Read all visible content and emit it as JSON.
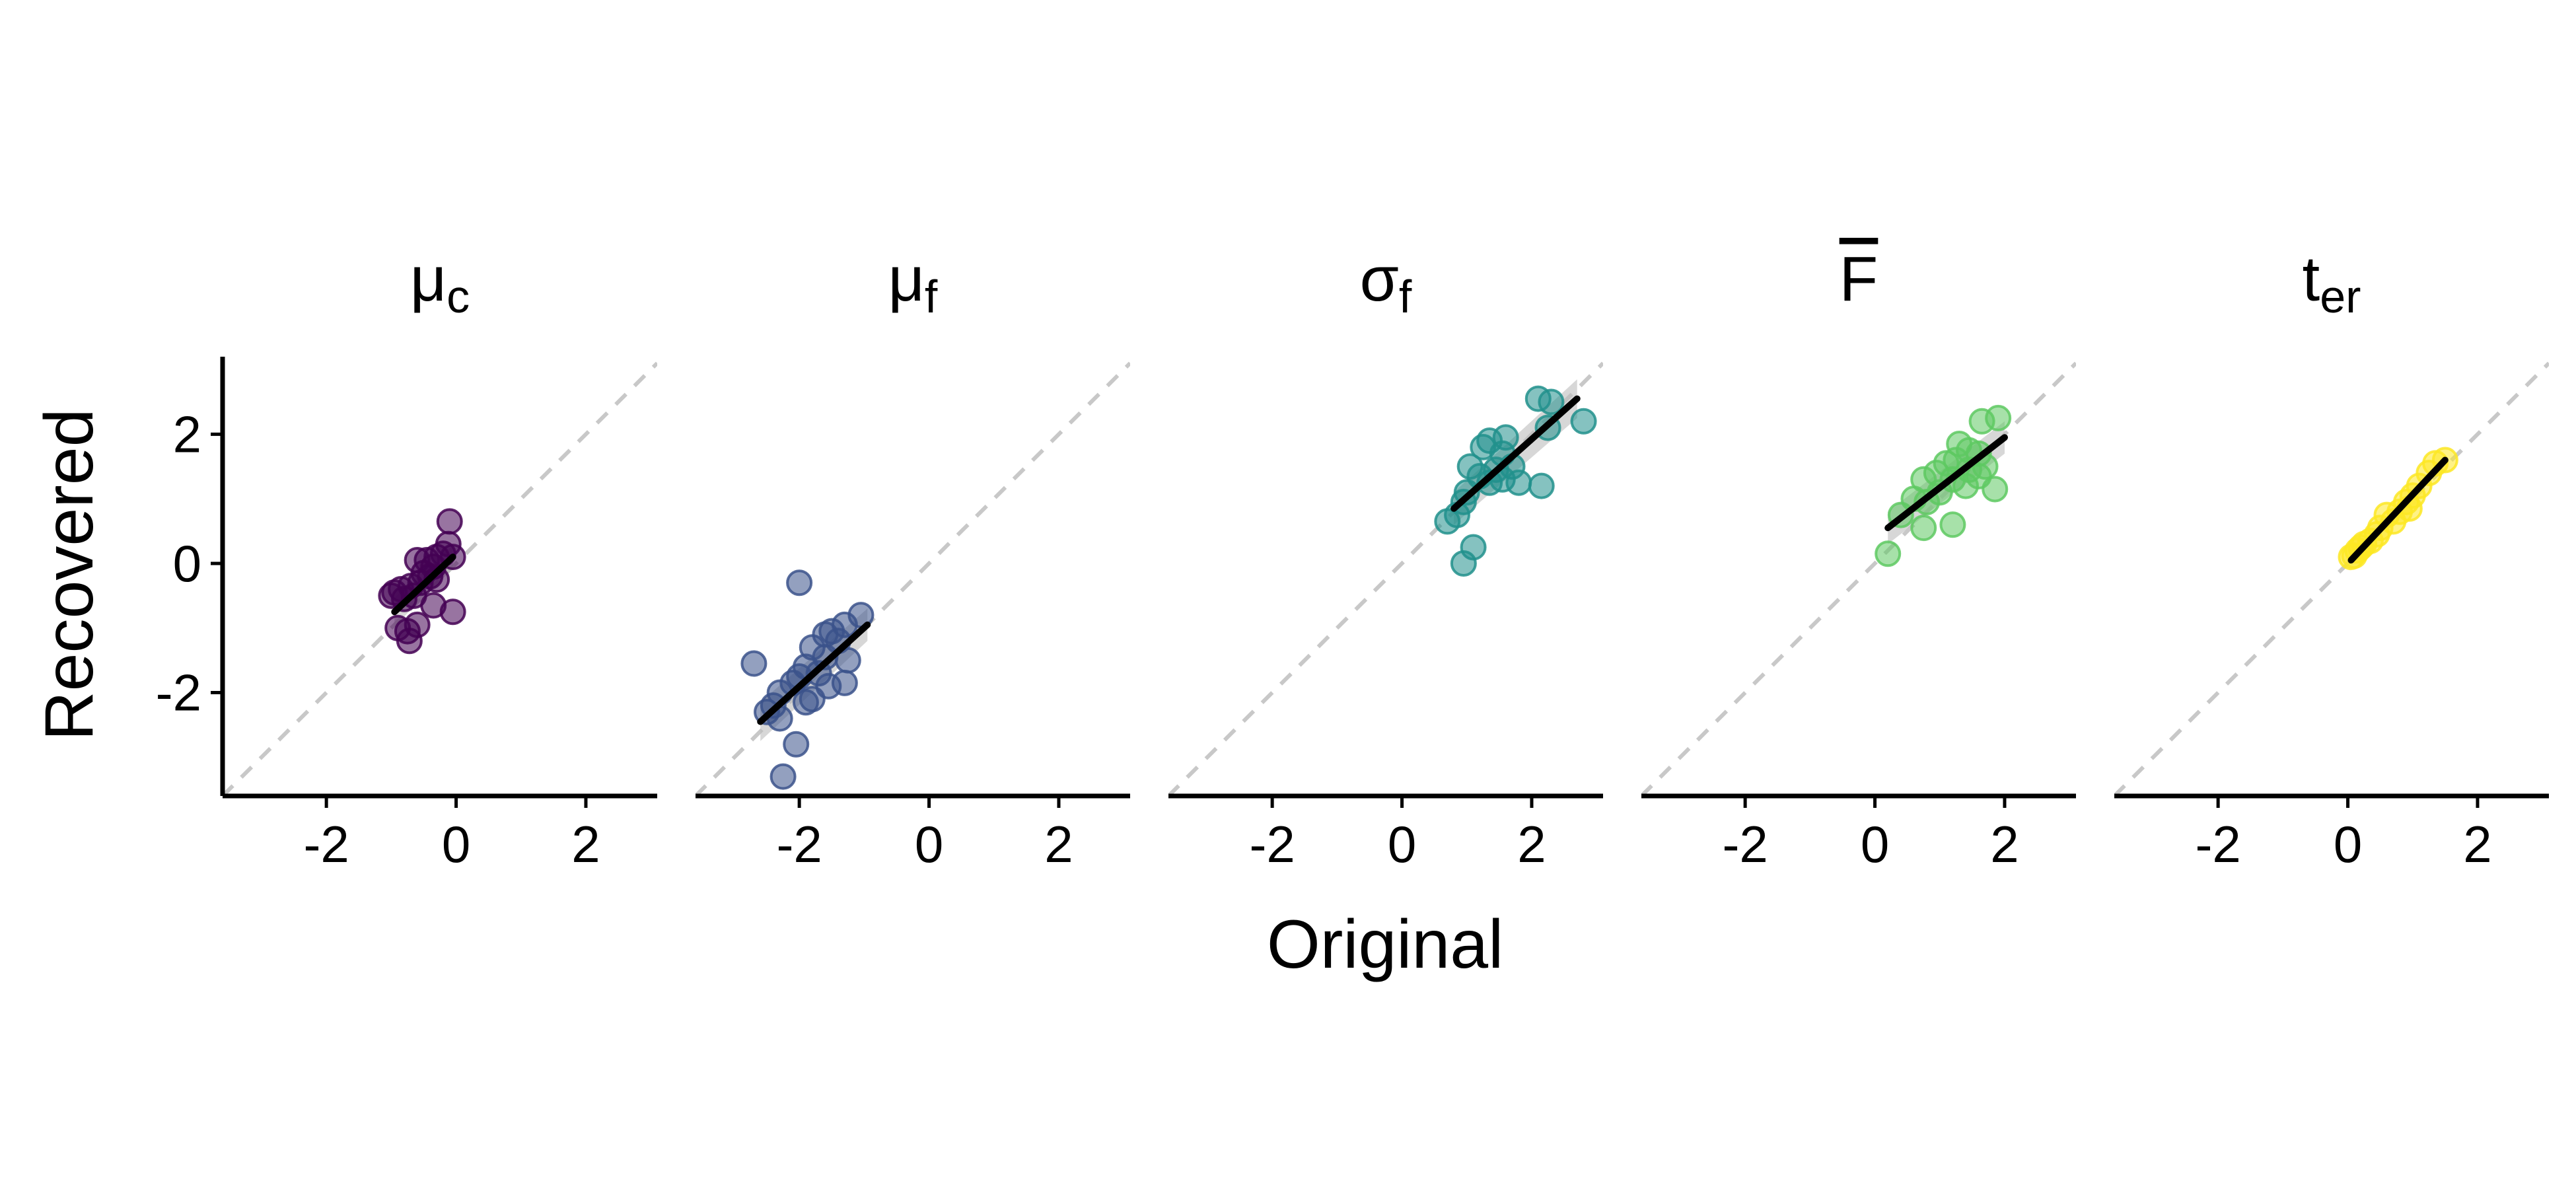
{
  "chart_data": {
    "type": "scatter",
    "xlabel": "Original",
    "ylabel": "Recovered",
    "xlim": [
      -3.6,
      3.1
    ],
    "ylim": [
      -3.6,
      3.2
    ],
    "x_ticks": [
      {
        "value": -2,
        "label": "-2"
      },
      {
        "value": 0,
        "label": "0"
      },
      {
        "value": 2,
        "label": "2"
      }
    ],
    "y_ticks": [
      {
        "value": -2,
        "label": "-2"
      },
      {
        "value": 0,
        "label": "0"
      },
      {
        "value": 2,
        "label": "2"
      }
    ],
    "grid": false,
    "legend": "none",
    "identity_line": true,
    "identity_color": "#c8c8c8",
    "fit_line_color": "#000000",
    "ribbon_color": "#bdbdbd",
    "panels": [
      {
        "title": "μ",
        "title_sub": "c",
        "title_overline": false,
        "color": "#440154",
        "fit": {
          "x": [
            -0.95,
            -0.05
          ],
          "y": [
            -0.75,
            0.1
          ],
          "band": [
            0.22,
            0.18
          ]
        },
        "points": [
          [
            -0.1,
            0.65
          ],
          [
            -0.12,
            0.3
          ],
          [
            -0.05,
            0.1
          ],
          [
            -0.2,
            0.15
          ],
          [
            -0.3,
            0.1
          ],
          [
            -0.45,
            0.05
          ],
          [
            -0.6,
            0.05
          ],
          [
            -0.35,
            -0.05
          ],
          [
            -0.5,
            -0.15
          ],
          [
            -0.4,
            -0.2
          ],
          [
            -0.3,
            -0.25
          ],
          [
            -0.55,
            -0.3
          ],
          [
            -0.7,
            -0.35
          ],
          [
            -0.85,
            -0.4
          ],
          [
            -0.95,
            -0.45
          ],
          [
            -0.65,
            -0.5
          ],
          [
            -0.8,
            -0.55
          ],
          [
            -1.0,
            -0.5
          ],
          [
            -0.35,
            -0.65
          ],
          [
            -0.05,
            -0.75
          ],
          [
            -0.6,
            -0.95
          ],
          [
            -0.75,
            -1.05
          ],
          [
            -0.9,
            -1.0
          ],
          [
            -0.72,
            -1.2
          ]
        ]
      },
      {
        "title": "μ",
        "title_sub": "f",
        "title_overline": false,
        "color": "#3b528b",
        "fit": {
          "x": [
            -2.6,
            -0.95
          ],
          "y": [
            -2.45,
            -0.95
          ],
          "band": [
            0.3,
            0.25
          ]
        },
        "points": [
          [
            -2.0,
            -0.3
          ],
          [
            -1.05,
            -0.8
          ],
          [
            -1.3,
            -0.95
          ],
          [
            -1.5,
            -1.05
          ],
          [
            -1.6,
            -1.1
          ],
          [
            -1.4,
            -1.2
          ],
          [
            -1.8,
            -1.3
          ],
          [
            -1.6,
            -1.45
          ],
          [
            -1.25,
            -1.5
          ],
          [
            -2.7,
            -1.55
          ],
          [
            -1.9,
            -1.6
          ],
          [
            -1.7,
            -1.7
          ],
          [
            -2.0,
            -1.75
          ],
          [
            -2.1,
            -1.85
          ],
          [
            -1.3,
            -1.85
          ],
          [
            -1.55,
            -1.9
          ],
          [
            -2.3,
            -2.0
          ],
          [
            -1.8,
            -2.1
          ],
          [
            -1.9,
            -2.15
          ],
          [
            -2.4,
            -2.2
          ],
          [
            -2.5,
            -2.3
          ],
          [
            -2.3,
            -2.4
          ],
          [
            -2.05,
            -2.8
          ],
          [
            -2.25,
            -3.3
          ]
        ]
      },
      {
        "title": "σ",
        "title_sub": "f",
        "title_overline": false,
        "color": "#21908c",
        "fit": {
          "x": [
            0.8,
            2.7
          ],
          "y": [
            0.85,
            2.55
          ],
          "band": [
            0.25,
            0.3
          ]
        },
        "points": [
          [
            2.1,
            2.55
          ],
          [
            2.3,
            2.5
          ],
          [
            2.8,
            2.2
          ],
          [
            2.25,
            2.1
          ],
          [
            1.6,
            1.95
          ],
          [
            1.35,
            1.9
          ],
          [
            1.25,
            1.8
          ],
          [
            1.55,
            1.7
          ],
          [
            1.05,
            1.5
          ],
          [
            1.45,
            1.45
          ],
          [
            1.7,
            1.5
          ],
          [
            1.2,
            1.35
          ],
          [
            1.35,
            1.25
          ],
          [
            1.55,
            1.3
          ],
          [
            1.8,
            1.25
          ],
          [
            2.15,
            1.2
          ],
          [
            1.0,
            1.1
          ],
          [
            0.95,
            0.95
          ],
          [
            0.85,
            0.75
          ],
          [
            0.7,
            0.65
          ],
          [
            1.1,
            0.25
          ],
          [
            0.95,
            0.0
          ]
        ]
      },
      {
        "title": "F",
        "title_sub": "",
        "title_overline": true,
        "color": "#5ec962",
        "fit": {
          "x": [
            0.2,
            2.0
          ],
          "y": [
            0.55,
            1.95
          ],
          "band": [
            0.25,
            0.25
          ]
        },
        "points": [
          [
            1.9,
            2.25
          ],
          [
            1.65,
            2.2
          ],
          [
            1.3,
            1.85
          ],
          [
            1.45,
            1.75
          ],
          [
            1.6,
            1.7
          ],
          [
            1.25,
            1.6
          ],
          [
            1.1,
            1.55
          ],
          [
            1.7,
            1.5
          ],
          [
            1.45,
            1.45
          ],
          [
            0.95,
            1.4
          ],
          [
            1.6,
            1.35
          ],
          [
            1.2,
            1.3
          ],
          [
            0.75,
            1.3
          ],
          [
            1.4,
            1.2
          ],
          [
            1.85,
            1.15
          ],
          [
            1.0,
            1.1
          ],
          [
            0.6,
            1.0
          ],
          [
            0.8,
            0.95
          ],
          [
            0.4,
            0.75
          ],
          [
            1.2,
            0.6
          ],
          [
            0.75,
            0.55
          ],
          [
            0.2,
            0.15
          ]
        ]
      },
      {
        "title": "t",
        "title_sub": "er",
        "title_overline": false,
        "color": "#fde725",
        "fit": {
          "x": [
            0.05,
            1.5
          ],
          "y": [
            0.05,
            1.6
          ],
          "band": [
            0.08,
            0.08
          ]
        },
        "points": [
          [
            1.5,
            1.6
          ],
          [
            1.35,
            1.55
          ],
          [
            1.25,
            1.4
          ],
          [
            1.1,
            1.2
          ],
          [
            1.0,
            1.05
          ],
          [
            0.9,
            0.95
          ],
          [
            0.95,
            0.85
          ],
          [
            0.8,
            0.8
          ],
          [
            0.6,
            0.75
          ],
          [
            0.7,
            0.65
          ],
          [
            0.5,
            0.55
          ],
          [
            0.45,
            0.45
          ],
          [
            0.35,
            0.35
          ],
          [
            0.25,
            0.3
          ],
          [
            0.2,
            0.25
          ],
          [
            0.15,
            0.2
          ],
          [
            0.1,
            0.12
          ],
          [
            0.05,
            0.1
          ]
        ]
      }
    ]
  }
}
